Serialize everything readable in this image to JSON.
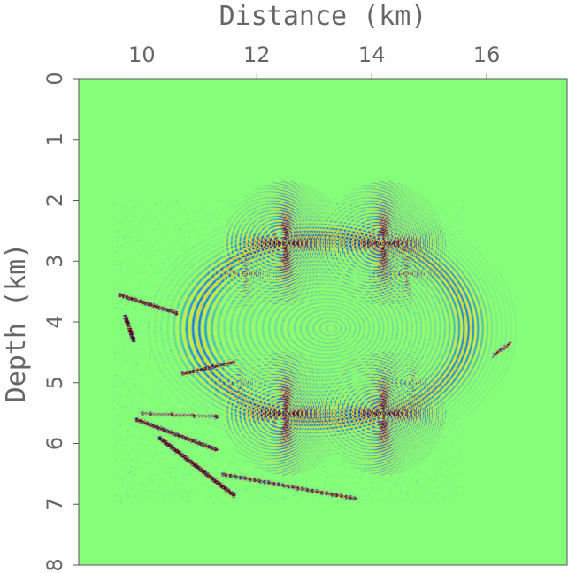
{
  "chart_data": {
    "type": "heatmap",
    "title": "",
    "xlabel": "Distance (km)",
    "ylabel": "Depth (km)",
    "x_ticks": [
      "10",
      "12",
      "14",
      "16"
    ],
    "y_ticks": [
      "0",
      "1",
      "2",
      "3",
      "4",
      "5",
      "6",
      "7",
      "8"
    ],
    "xlim": [
      8.9,
      17.4
    ],
    "ylim": [
      0,
      8
    ],
    "y_reversed": true,
    "grid": false,
    "background_value_color": "#85ff7a",
    "colormap": [
      "#2a0a3a",
      "#5b1a7a",
      "#1d7fe0",
      "#85ff7a",
      "#f0e030",
      "#e04020",
      "#6a0f10"
    ],
    "features": [
      {
        "kind": "focus",
        "x": 12.5,
        "y": 2.7,
        "strength": 1.0
      },
      {
        "kind": "focus",
        "x": 14.2,
        "y": 2.7,
        "strength": 1.0
      },
      {
        "kind": "focus",
        "x": 12.5,
        "y": 5.5,
        "strength": 1.0
      },
      {
        "kind": "focus",
        "x": 14.2,
        "y": 5.5,
        "strength": 1.0
      },
      {
        "kind": "focus",
        "x": 11.8,
        "y": 3.2,
        "strength": 0.5
      },
      {
        "kind": "focus",
        "x": 14.6,
        "y": 3.2,
        "strength": 0.5
      },
      {
        "kind": "focus",
        "x": 11.7,
        "y": 5.0,
        "strength": 0.4
      },
      {
        "kind": "focus",
        "x": 14.7,
        "y": 5.0,
        "strength": 0.4
      },
      {
        "kind": "arc",
        "cx": 13.3,
        "cy": 4.1,
        "rx": 2.4,
        "ry": 1.55
      },
      {
        "kind": "streak",
        "x0": 9.6,
        "y0": 3.55,
        "x1": 10.6,
        "y1": 3.85
      },
      {
        "kind": "streak",
        "x0": 9.7,
        "y0": 3.9,
        "x1": 9.85,
        "y1": 4.3
      },
      {
        "kind": "streak",
        "x0": 10.7,
        "y0": 4.85,
        "x1": 11.6,
        "y1": 4.65
      },
      {
        "kind": "streak",
        "x0": 9.9,
        "y0": 5.6,
        "x1": 11.3,
        "y1": 6.1
      },
      {
        "kind": "streak",
        "x0": 10.3,
        "y0": 5.9,
        "x1": 11.6,
        "y1": 6.85
      },
      {
        "kind": "streak",
        "x0": 10.0,
        "y0": 5.5,
        "x1": 11.3,
        "y1": 5.55
      },
      {
        "kind": "streak",
        "x0": 11.4,
        "y0": 6.5,
        "x1": 13.7,
        "y1": 6.9
      },
      {
        "kind": "streak",
        "x0": 16.1,
        "y0": 4.55,
        "x1": 16.4,
        "y1": 4.35
      }
    ]
  }
}
